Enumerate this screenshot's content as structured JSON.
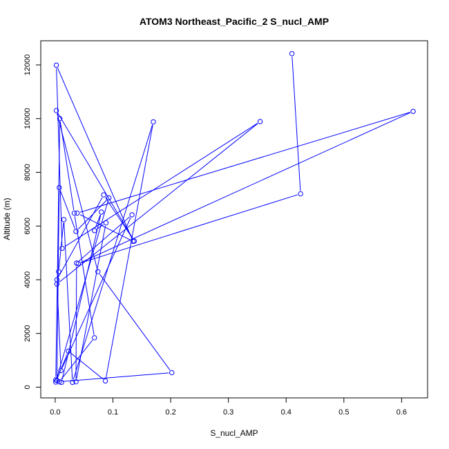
{
  "chart_data": {
    "type": "line",
    "title": "ATOM3 Northeast_Pacific_2 S_nucl_AMP",
    "xlabel": "S_nucl_AMP",
    "ylabel": "Altitude (m)",
    "xlim": [
      -0.025,
      0.645
    ],
    "ylim": [
      -400,
      12900
    ],
    "xticks": [
      0,
      0.1,
      0.2,
      0.3,
      0.4,
      0.5,
      0.6
    ],
    "xtick_labels": [
      "0.0",
      "0.1",
      "0.2",
      "0.3",
      "0.4",
      "0.5",
      "0.6"
    ],
    "yticks": [
      0,
      2000,
      4000,
      6000,
      8000,
      10000,
      12000
    ],
    "ytick_labels": [
      "0",
      "2000",
      "4000",
      "6000",
      "8000",
      "10000",
      "12000"
    ],
    "grid": false,
    "color": "#0000ff",
    "marker": "open-circle",
    "series": [
      {
        "x": [
          0.41,
          0.425,
          0.04,
          0.62,
          0.038,
          0.135,
          0.002,
          0.012,
          0.355,
          0.003,
          0.006,
          0.015,
          0.03,
          0.17,
          0.087,
          0.023,
          0.001,
          0.093,
          0.036,
          0.007,
          0.003,
          0.011,
          0.08,
          0.068,
          0.088,
          0.036,
          0.037,
          0.133,
          0.01,
          0.003,
          0.084,
          0.137,
          0.002,
          0.074,
          0.202,
          0.007,
          0.068,
          0.033,
          0.008,
          0.001
        ],
        "y": [
          12420,
          7200,
          4600,
          10270,
          6480,
          5430,
          11990,
          5170,
          9890,
          3840,
          4300,
          6240,
          180,
          9880,
          230,
          1340,
          190,
          7050,
          5800,
          7430,
          250,
          180,
          6520,
          5830,
          6120,
          200,
          4620,
          6420,
          620,
          4000,
          7160,
          5440,
          10300,
          4300,
          540,
          200,
          1840,
          6480,
          10000,
          270
        ]
      }
    ]
  }
}
